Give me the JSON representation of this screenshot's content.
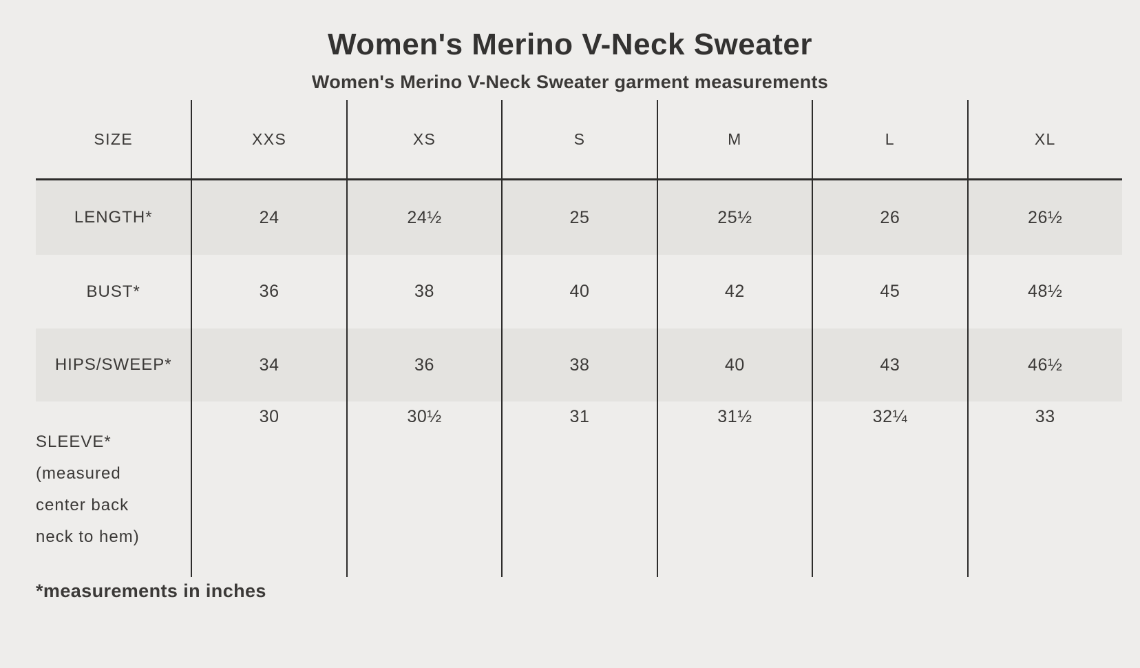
{
  "page": {
    "title": "Women's Merino V-Neck Sweater",
    "subtitle": "Women's Merino V-Neck Sweater garment measurements",
    "footnote": "*measurements in inches"
  },
  "colors": {
    "background": "#EEEDEB",
    "row_shade": "#E4E3E0",
    "line": "#2D2C2B",
    "text": "#3B3937"
  },
  "table": {
    "headers": [
      "SIZE",
      "XXS",
      "XS",
      "S",
      "M",
      "L",
      "XL"
    ],
    "rows": [
      {
        "label": "LENGTH*",
        "shaded": true,
        "values": [
          "24",
          "24½",
          "25",
          "25½",
          "26",
          "26½"
        ]
      },
      {
        "label": "BUST*",
        "shaded": false,
        "values": [
          "36",
          "38",
          "40",
          "42",
          "45",
          "48½"
        ]
      },
      {
        "label": "HIPS/SWEEP*",
        "shaded": true,
        "values": [
          "34",
          "36",
          "38",
          "40",
          "43",
          "46½"
        ]
      },
      {
        "label": "SLEEVE*",
        "shaded": false,
        "values": [
          "30",
          "30½",
          "31",
          "31½",
          "32¼",
          "33"
        ],
        "note_lines": [
          "(measured",
          "center back",
          "neck to hem)"
        ]
      }
    ]
  },
  "chart_data": {
    "type": "table",
    "title": "Women's Merino V-Neck Sweater",
    "subtitle": "Women's Merino V-Neck Sweater garment measurements",
    "columns": [
      "SIZE",
      "XXS",
      "XS",
      "S",
      "M",
      "L",
      "XL"
    ],
    "rows": [
      {
        "label": "LENGTH*",
        "values": [
          24,
          24.5,
          25,
          25.5,
          26,
          26.5
        ]
      },
      {
        "label": "BUST*",
        "values": [
          36,
          38,
          40,
          42,
          45,
          48.5
        ]
      },
      {
        "label": "HIPS/SWEEP*",
        "values": [
          34,
          36,
          38,
          40,
          43,
          46.5
        ]
      },
      {
        "label": "SLEEVE* (measured center back neck to hem)",
        "values": [
          30,
          30.5,
          31,
          31.5,
          32.25,
          33
        ]
      }
    ],
    "footnote": "*measurements in inches",
    "units": "inches"
  }
}
